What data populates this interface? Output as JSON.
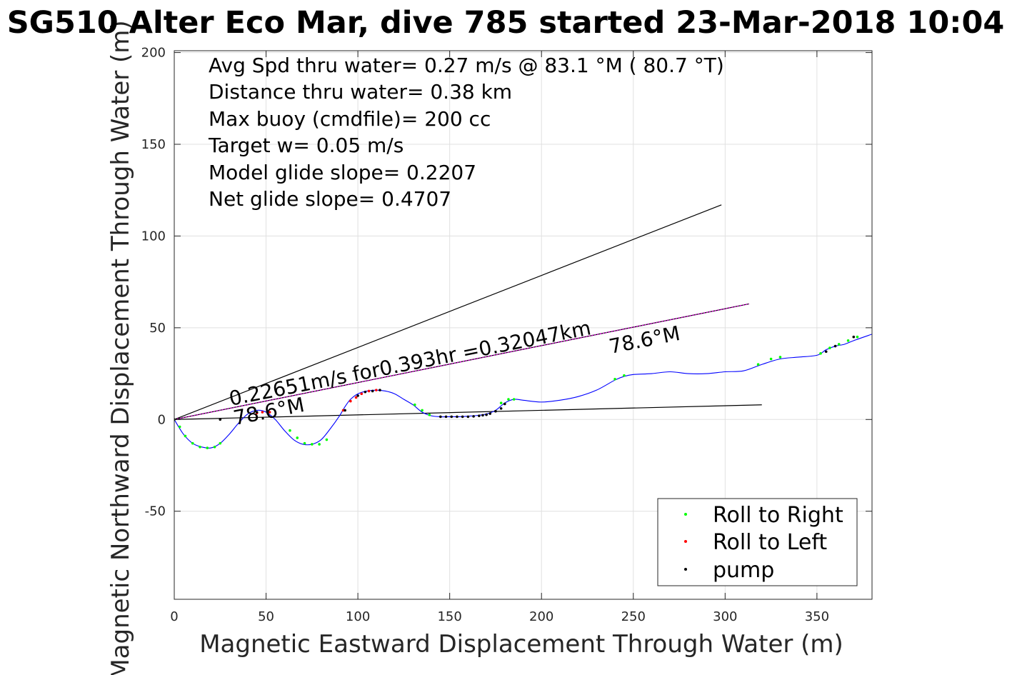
{
  "chart_data": {
    "type": "line",
    "title": "SG510 Alter Eco Mar, dive 785 started 23-Mar-2018 10:04",
    "xlabel": "Magnetic Eastward Displacement Through Water (m)",
    "ylabel": "Magnetic Northward Displacement Through Water (m)",
    "xlim": [
      0,
      380
    ],
    "ylim": [
      -98,
      201
    ],
    "xticks": [
      "0",
      "50",
      "100",
      "150",
      "200",
      "250",
      "300",
      "350"
    ],
    "yticks": [
      "-50",
      "0",
      "50",
      "100",
      "150",
      "200"
    ],
    "grid": true,
    "legend_location": "bottom-right",
    "annotation_lines": [
      "Avg Spd thru water=  0.27 m/s @  83.1 °M ( 80.7 °T)",
      "Distance thru water=  0.38 km",
      "Max buoy (cmdfile)= 200 cc",
      "Target w= 0.05 m/s",
      "Model glide slope= 0.2207",
      "Net glide slope= 0.4707"
    ],
    "heading_label_1": "78.6°M",
    "heading_label_2": "78.6°M",
    "current_label": "0.22651m/s for0.393hr =0.32047km",
    "legend": [
      "Roll to Right",
      "Roll to Left",
      "pump"
    ],
    "reference_lines": [
      {
        "x": [
          0,
          298
        ],
        "y": [
          0,
          117
        ]
      },
      {
        "x": [
          0,
          320
        ],
        "y": [
          0,
          8
        ]
      },
      {
        "x": [
          0,
          313
        ],
        "y": [
          0,
          63
        ]
      }
    ],
    "track": {
      "x": [
        0,
        5,
        10,
        15,
        20,
        25,
        30,
        35,
        40,
        45,
        50,
        55,
        60,
        65,
        70,
        75,
        80,
        85,
        90,
        93,
        96,
        100,
        105,
        110,
        115,
        120,
        125,
        130,
        135,
        140,
        145,
        150,
        155,
        160,
        165,
        170,
        175,
        180,
        185,
        190,
        200,
        210,
        220,
        230,
        240,
        245,
        250,
        260,
        270,
        280,
        290,
        300,
        310,
        320,
        330,
        340,
        350,
        355,
        360,
        365,
        370,
        380
      ],
      "y": [
        0,
        -8,
        -13,
        -15,
        -15.5,
        -13,
        -8,
        -2,
        3,
        5,
        4,
        0,
        -6,
        -11,
        -13.5,
        -13.5,
        -11,
        -5,
        2,
        7,
        11,
        14,
        15.5,
        16,
        15.5,
        14,
        11,
        8,
        4,
        2,
        1.5,
        1.5,
        1.5,
        1.8,
        2.2,
        3,
        5,
        9,
        11,
        10.5,
        9.5,
        10.5,
        12.5,
        16,
        21.5,
        23.5,
        24.5,
        25,
        26,
        25,
        25,
        26,
        26.5,
        30,
        33,
        34,
        35,
        38,
        40,
        41,
        43,
        46.5
      ]
    },
    "roll_right_points": {
      "x": [
        0,
        3,
        6,
        10,
        14,
        18,
        22,
        25,
        63,
        67,
        71,
        75,
        79,
        83,
        131,
        135,
        139,
        178,
        182,
        185,
        240,
        245,
        318,
        325,
        330,
        352,
        357,
        362,
        367,
        372
      ],
      "y": [
        0,
        -4,
        -9,
        -13,
        -15,
        -15.5,
        -15,
        -13,
        -6,
        -10,
        -13,
        -13.5,
        -13.5,
        -11,
        8,
        5,
        2.5,
        9,
        11,
        11,
        22,
        24,
        30,
        33,
        34,
        36,
        39,
        41,
        43,
        45
      ]
    },
    "roll_left_points": {
      "x": [
        45,
        48,
        52,
        92,
        96,
        99,
        102,
        106,
        110
      ],
      "y": [
        3.5,
        4,
        4,
        5,
        10,
        12,
        14,
        15.5,
        16
      ]
    },
    "pump_points": {
      "x": [
        0,
        25,
        45,
        93,
        100,
        104,
        108,
        112,
        145,
        148,
        151,
        154,
        157,
        160,
        163,
        166,
        168,
        170,
        172,
        175,
        178,
        180,
        355,
        360,
        370
      ],
      "y": [
        0,
        0,
        4,
        5,
        13,
        15,
        15.5,
        16,
        1.5,
        1.5,
        1.5,
        1.5,
        1.5,
        1.5,
        1.7,
        2,
        2.3,
        2.6,
        3.2,
        4.5,
        6,
        8.5,
        37,
        40,
        45
      ]
    },
    "colors": {
      "track": "#0000ff",
      "net_line": "#cc00cc",
      "reference": "#000000",
      "roll_right": "#00ff00",
      "roll_left": "#ff0000",
      "pump": "#000000",
      "grid": "#e0e0e0",
      "axes": "#262626"
    }
  }
}
